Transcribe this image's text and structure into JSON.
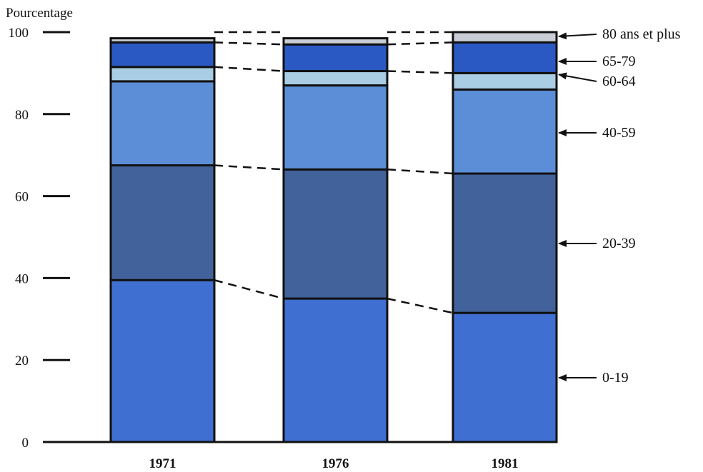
{
  "chart_data": {
    "type": "bar",
    "stacked": true,
    "ylabel": "Pourcentage",
    "ylim": [
      0,
      100
    ],
    "yticks": [
      0,
      20,
      40,
      60,
      80,
      100
    ],
    "categories": [
      "1971",
      "1976",
      "1981"
    ],
    "series": [
      {
        "name": "0-19",
        "values": [
          39.5,
          35.0,
          31.5
        ],
        "color": "#3f6fd1"
      },
      {
        "name": "20-39",
        "values": [
          28.0,
          31.5,
          34.0
        ],
        "color": "#41629a"
      },
      {
        "name": "40-59",
        "values": [
          20.5,
          20.5,
          20.5
        ],
        "color": "#5b8ed6"
      },
      {
        "name": "60-64",
        "values": [
          3.5,
          3.5,
          4.0
        ],
        "color": "#a9cde3"
      },
      {
        "name": "65-79",
        "values": [
          6.0,
          6.5,
          7.5
        ],
        "color": "#2a59c4"
      },
      {
        "name": "80 ans et plus",
        "values": [
          1.0,
          1.5,
          2.5
        ],
        "color": "#c9ced6"
      }
    ],
    "legend": "right",
    "grid": false
  }
}
